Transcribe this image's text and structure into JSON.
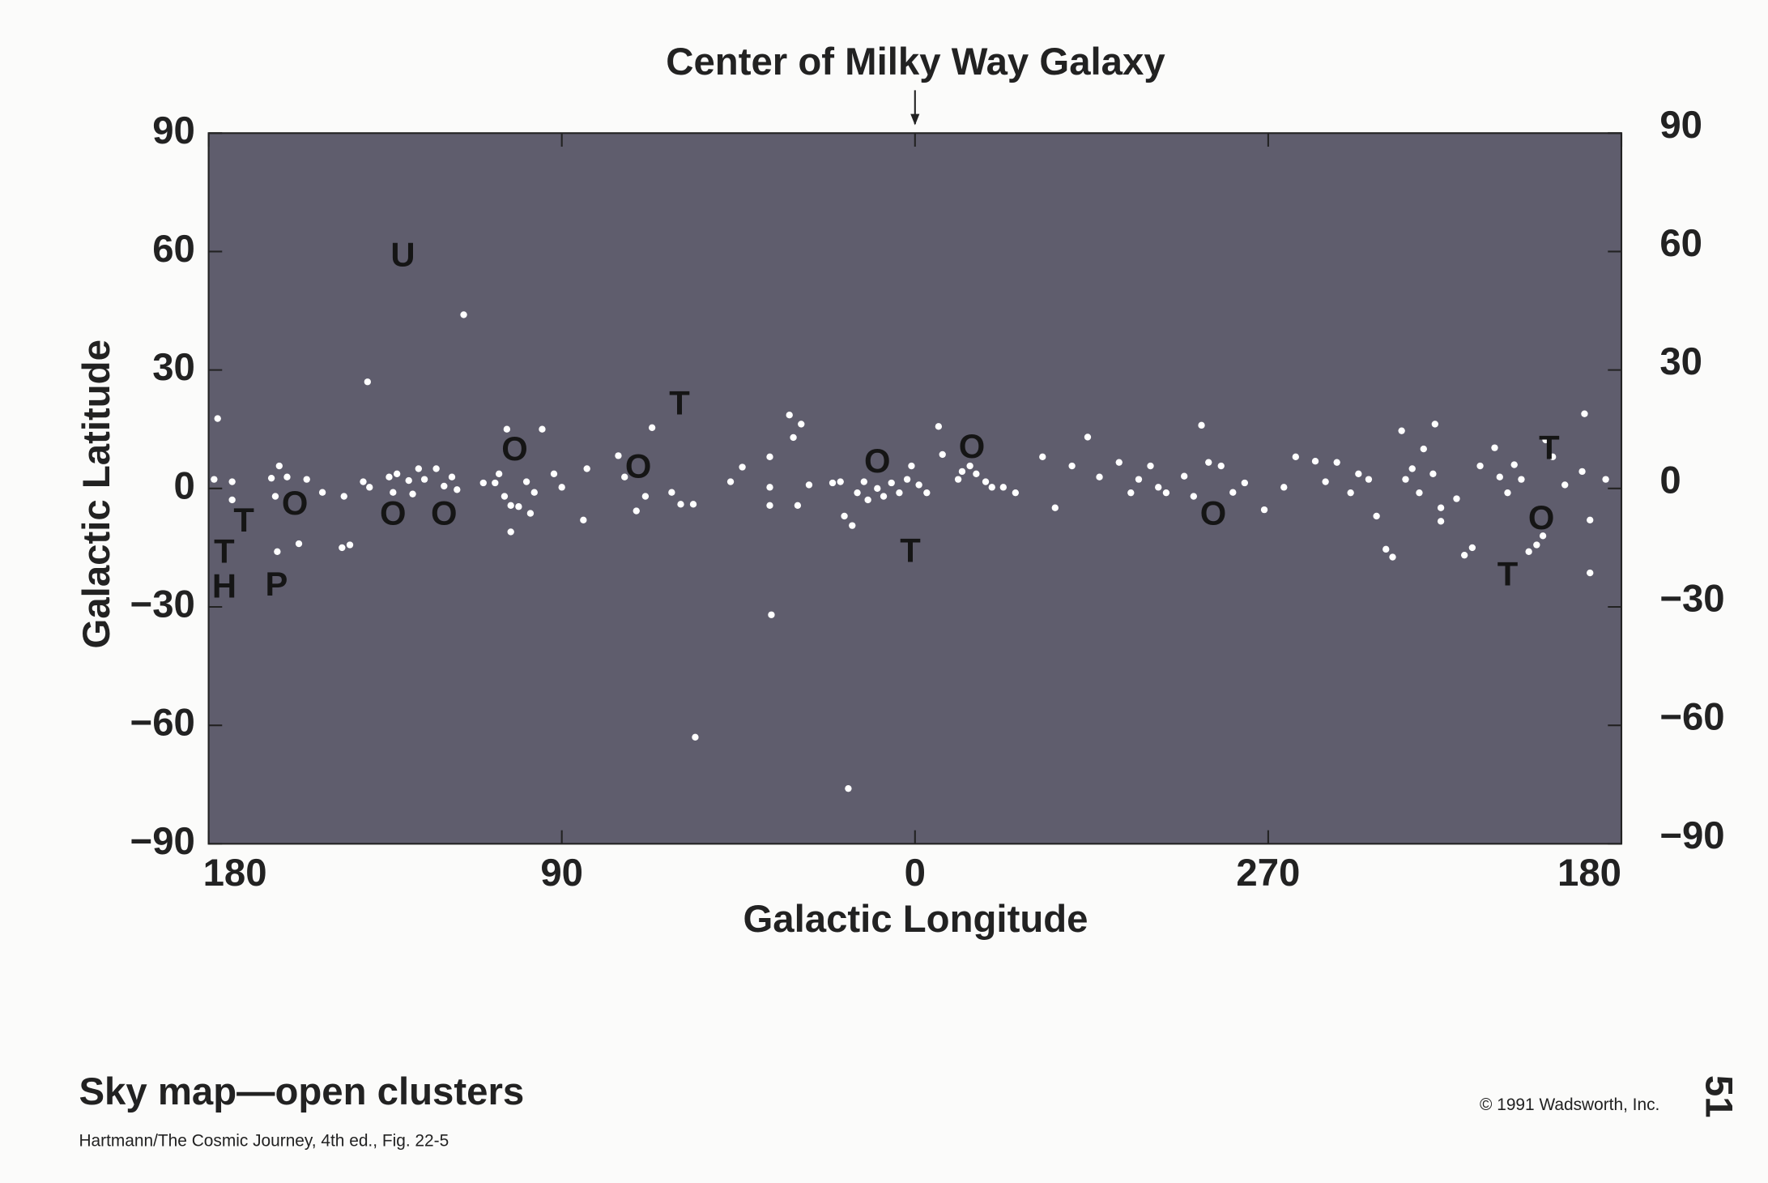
{
  "chart_data": {
    "type": "scatter",
    "title": "Center of Milky Way Galaxy",
    "x_label": "Galactic Longitude",
    "y_label": "Galactic Latitude",
    "xlim": [
      180,
      -180
    ],
    "ylim": [
      -90,
      90
    ],
    "xticks": [
      180,
      90,
      0,
      {
        "value": -90,
        "label": "270"
      },
      {
        "value": -180,
        "label": "180"
      }
    ],
    "yticks": [
      {
        "value": -90,
        "label": "−90"
      },
      {
        "value": -60,
        "label": "−60"
      },
      {
        "value": -30,
        "label": "−30"
      },
      0,
      30,
      60,
      90
    ],
    "grid": false,
    "background": "#5f5d6d",
    "series": [
      {
        "color": "#ffffff",
        "x": [
          177.7,
          178.6,
          174,
          174,
          164,
          162,
          160,
          163,
          155,
          151,
          145.5,
          157,
          162.5,
          146,
          144,
          139.5,
          140.6,
          139,
          134,
          133,
          132,
          129,
          126.5,
          125,
          128,
          122,
          120,
          118,
          116.7,
          115,
          110,
          107,
          106,
          104,
          104.6,
          103,
          103,
          101,
          99,
          98,
          97,
          95,
          92,
          90,
          84.5,
          83.6,
          75.6,
          74,
          71,
          68.7,
          67,
          62,
          59.7,
          56.5,
          56,
          47,
          44,
          37,
          37,
          37,
          36.6,
          32,
          31,
          29,
          27,
          29.9,
          21,
          19,
          18,
          16,
          17,
          14.7,
          13,
          12,
          9.6,
          8,
          6,
          4,
          2,
          0.9,
          -1,
          -3,
          -6,
          -7,
          -11,
          -12,
          -14,
          -15.6,
          -18,
          -19.6,
          -22.5,
          -25.6,
          -32.5,
          -35.7,
          -40,
          -44,
          -47,
          -52,
          -55,
          -57,
          -60,
          -62,
          -64,
          -68.6,
          -71,
          -73,
          -74.8,
          -78,
          -81,
          -84,
          -89,
          -94,
          -97,
          -102,
          -104.6,
          -107.5,
          -111,
          -113,
          -115.6,
          -117.6,
          -120,
          -121.7,
          -124,
          -125,
          -126.7,
          -128.5,
          -129.6,
          -132,
          -132.5,
          -134,
          -134,
          -138,
          -140,
          -142,
          -144,
          -147.7,
          -149,
          -151,
          -152.7,
          -154.5,
          -156.4,
          -158.4,
          -160,
          -160.7,
          -162.5,
          -165.6,
          -170,
          -170.6,
          -172,
          -172,
          -176
        ],
        "y": [
          17.7,
          2.3,
          1.7,
          -2.9,
          2.6,
          5.7,
          2.9,
          -2,
          2.3,
          -1,
          -2,
          -14,
          -16,
          -15,
          -14.3,
          27,
          1.7,
          0.3,
          2.9,
          -1,
          3.7,
          2,
          5,
          2.3,
          -1.4,
          5,
          0.6,
          2.9,
          -0.3,
          44,
          1.4,
          1.4,
          3.7,
          15,
          -2,
          -4.3,
          -11,
          -4.6,
          1.7,
          -6.3,
          -1,
          15,
          3.7,
          0.3,
          -8,
          5,
          8.3,
          2.9,
          -5.7,
          -2,
          15.4,
          -1,
          -4,
          -4,
          -63,
          1.7,
          5.4,
          8,
          0.3,
          -4.3,
          -32,
          18.6,
          12.9,
          16.3,
          0.9,
          -4.3,
          1.4,
          1.7,
          -7,
          -9.4,
          -76,
          -1.1,
          1.7,
          -2.9,
          0,
          -2,
          1.4,
          -1.1,
          2.3,
          5.7,
          0.9,
          -1.1,
          15.7,
          8.6,
          2.3,
          4.3,
          5.7,
          3.7,
          1.7,
          0.3,
          0.3,
          -1.1,
          8,
          -4.9,
          5.7,
          13,
          2.9,
          6.6,
          -1.1,
          2.3,
          5.7,
          0.3,
          -1.1,
          3.1,
          -2,
          16,
          6.6,
          5.7,
          -1,
          1.4,
          -5.4,
          0.3,
          8,
          6.9,
          1.7,
          6.6,
          -1.1,
          3.7,
          2.3,
          -7,
          -15.4,
          -17.4,
          14.6,
          2.3,
          5,
          -1.1,
          10,
          3.7,
          16.3,
          -4.9,
          -8.3,
          -2.6,
          -16.9,
          -15,
          5.7,
          10.3,
          2.9,
          -1.1,
          6,
          2.3,
          -16,
          -14.3,
          -12,
          12.3,
          8,
          0.9,
          4.3,
          18.9,
          -8,
          -21.4,
          2.3
        ]
      }
    ],
    "annotations": [
      {
        "text": "U",
        "x": 130.5,
        "y": 58.6
      },
      {
        "text": "T",
        "x": 60,
        "y": 21
      },
      {
        "text": "O",
        "x": 102,
        "y": 9.4
      },
      {
        "text": "O",
        "x": 70.5,
        "y": 5
      },
      {
        "text": "O",
        "x": 158,
        "y": -4.3
      },
      {
        "text": "T",
        "x": 171,
        "y": -8.6
      },
      {
        "text": "T",
        "x": 176,
        "y": -16.6
      },
      {
        "text": "H",
        "x": 176,
        "y": -25.4
      },
      {
        "text": "P",
        "x": 162.7,
        "y": -24.9
      },
      {
        "text": "O",
        "x": 133,
        "y": -6.9
      },
      {
        "text": "O",
        "x": 120,
        "y": -6.9
      },
      {
        "text": "O",
        "x": 9.6,
        "y": 6.3
      },
      {
        "text": "O",
        "x": -14.5,
        "y": 10
      },
      {
        "text": "T",
        "x": 1.2,
        "y": -16.3
      },
      {
        "text": "O",
        "x": -76,
        "y": -6.9
      },
      {
        "text": "T",
        "x": -161.6,
        "y": 9.7
      },
      {
        "text": "O",
        "x": -159.6,
        "y": -8
      },
      {
        "text": "T",
        "x": -151,
        "y": -22.3
      }
    ]
  },
  "footer": {
    "caption": "Sky map—open clusters",
    "source": "Hartmann/The Cosmic Journey, 4th ed., Fig. 22-5",
    "copyright": "© 1991 Wadsworth, Inc.",
    "page": "51"
  }
}
